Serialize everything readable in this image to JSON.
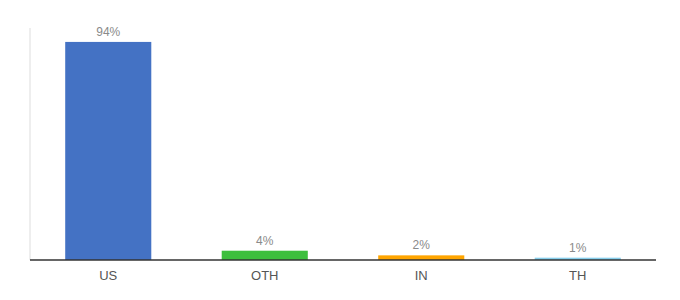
{
  "chart_data": {
    "type": "bar",
    "categories": [
      "US",
      "OTH",
      "IN",
      "TH"
    ],
    "values": [
      94,
      4,
      2,
      1
    ],
    "value_labels": [
      "94%",
      "4%",
      "2%",
      "1%"
    ],
    "colors": [
      "#4472C4",
      "#3DBF3D",
      "#FFA500",
      "#87CEEB"
    ],
    "ylim": [
      0,
      100
    ],
    "data_labels": true,
    "tick_labels": "x"
  }
}
